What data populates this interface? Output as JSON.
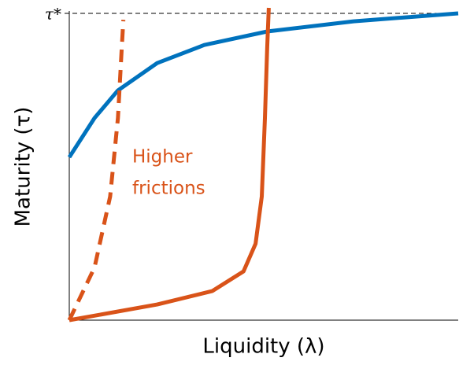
{
  "chart_data": {
    "type": "line",
    "xlabel": "Liquidity (λ)",
    "ylabel": "Maturity (τ)",
    "annotation": [
      "Higher",
      "frictions"
    ],
    "annotation_color": "#d95319",
    "xlim": [
      0,
      1
    ],
    "ylim": [
      0,
      1
    ],
    "yticks": [
      {
        "value": 1,
        "label": "τ*"
      }
    ],
    "series": [
      {
        "color": "#0072bd",
        "dashed": false,
        "x": [
          0,
          0.065,
          0.125,
          0.226,
          0.347,
          0.509,
          0.731,
          1
        ],
        "values": [
          0.531,
          0.659,
          0.749,
          0.838,
          0.897,
          0.941,
          0.974,
          1
        ]
      },
      {
        "color": "#d95319",
        "dashed": false,
        "x": [
          0,
          0.226,
          0.368,
          0.448,
          0.479,
          0.495,
          0.503,
          0.509,
          0.513
        ],
        "values": [
          0,
          0.051,
          0.095,
          0.159,
          0.249,
          0.403,
          0.659,
          0.89,
          1.018
        ]
      },
      {
        "color": "#d95319",
        "dashed": true,
        "x": [
          0,
          0.065,
          0.105,
          0.125,
          0.135,
          0.139
        ],
        "values": [
          0,
          0.172,
          0.403,
          0.659,
          0.89,
          0.979
        ]
      }
    ]
  }
}
